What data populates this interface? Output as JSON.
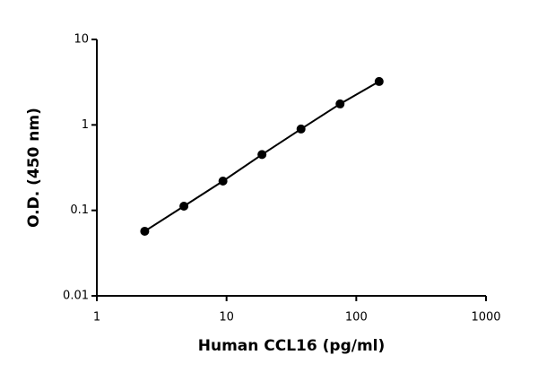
{
  "chart_data": {
    "type": "line",
    "x_label": "Human CCL16 (pg/ml)",
    "y_label": "O.D. (450 nm)",
    "x": [
      2.34,
      4.69,
      9.38,
      18.75,
      37.5,
      75,
      150
    ],
    "series": [
      {
        "values": [
          0.057,
          0.112,
          0.22,
          0.45,
          0.895,
          1.76,
          3.22
        ],
        "color": "#000000"
      }
    ],
    "xlim": [
      1,
      1000
    ],
    "ylim": [
      0.01,
      10
    ],
    "xticks": [
      1,
      10,
      100,
      1000
    ],
    "yticks": [
      0.01,
      0.1,
      1,
      10
    ],
    "xscale": "log",
    "yscale": "log",
    "markers": true,
    "grid": false
  }
}
